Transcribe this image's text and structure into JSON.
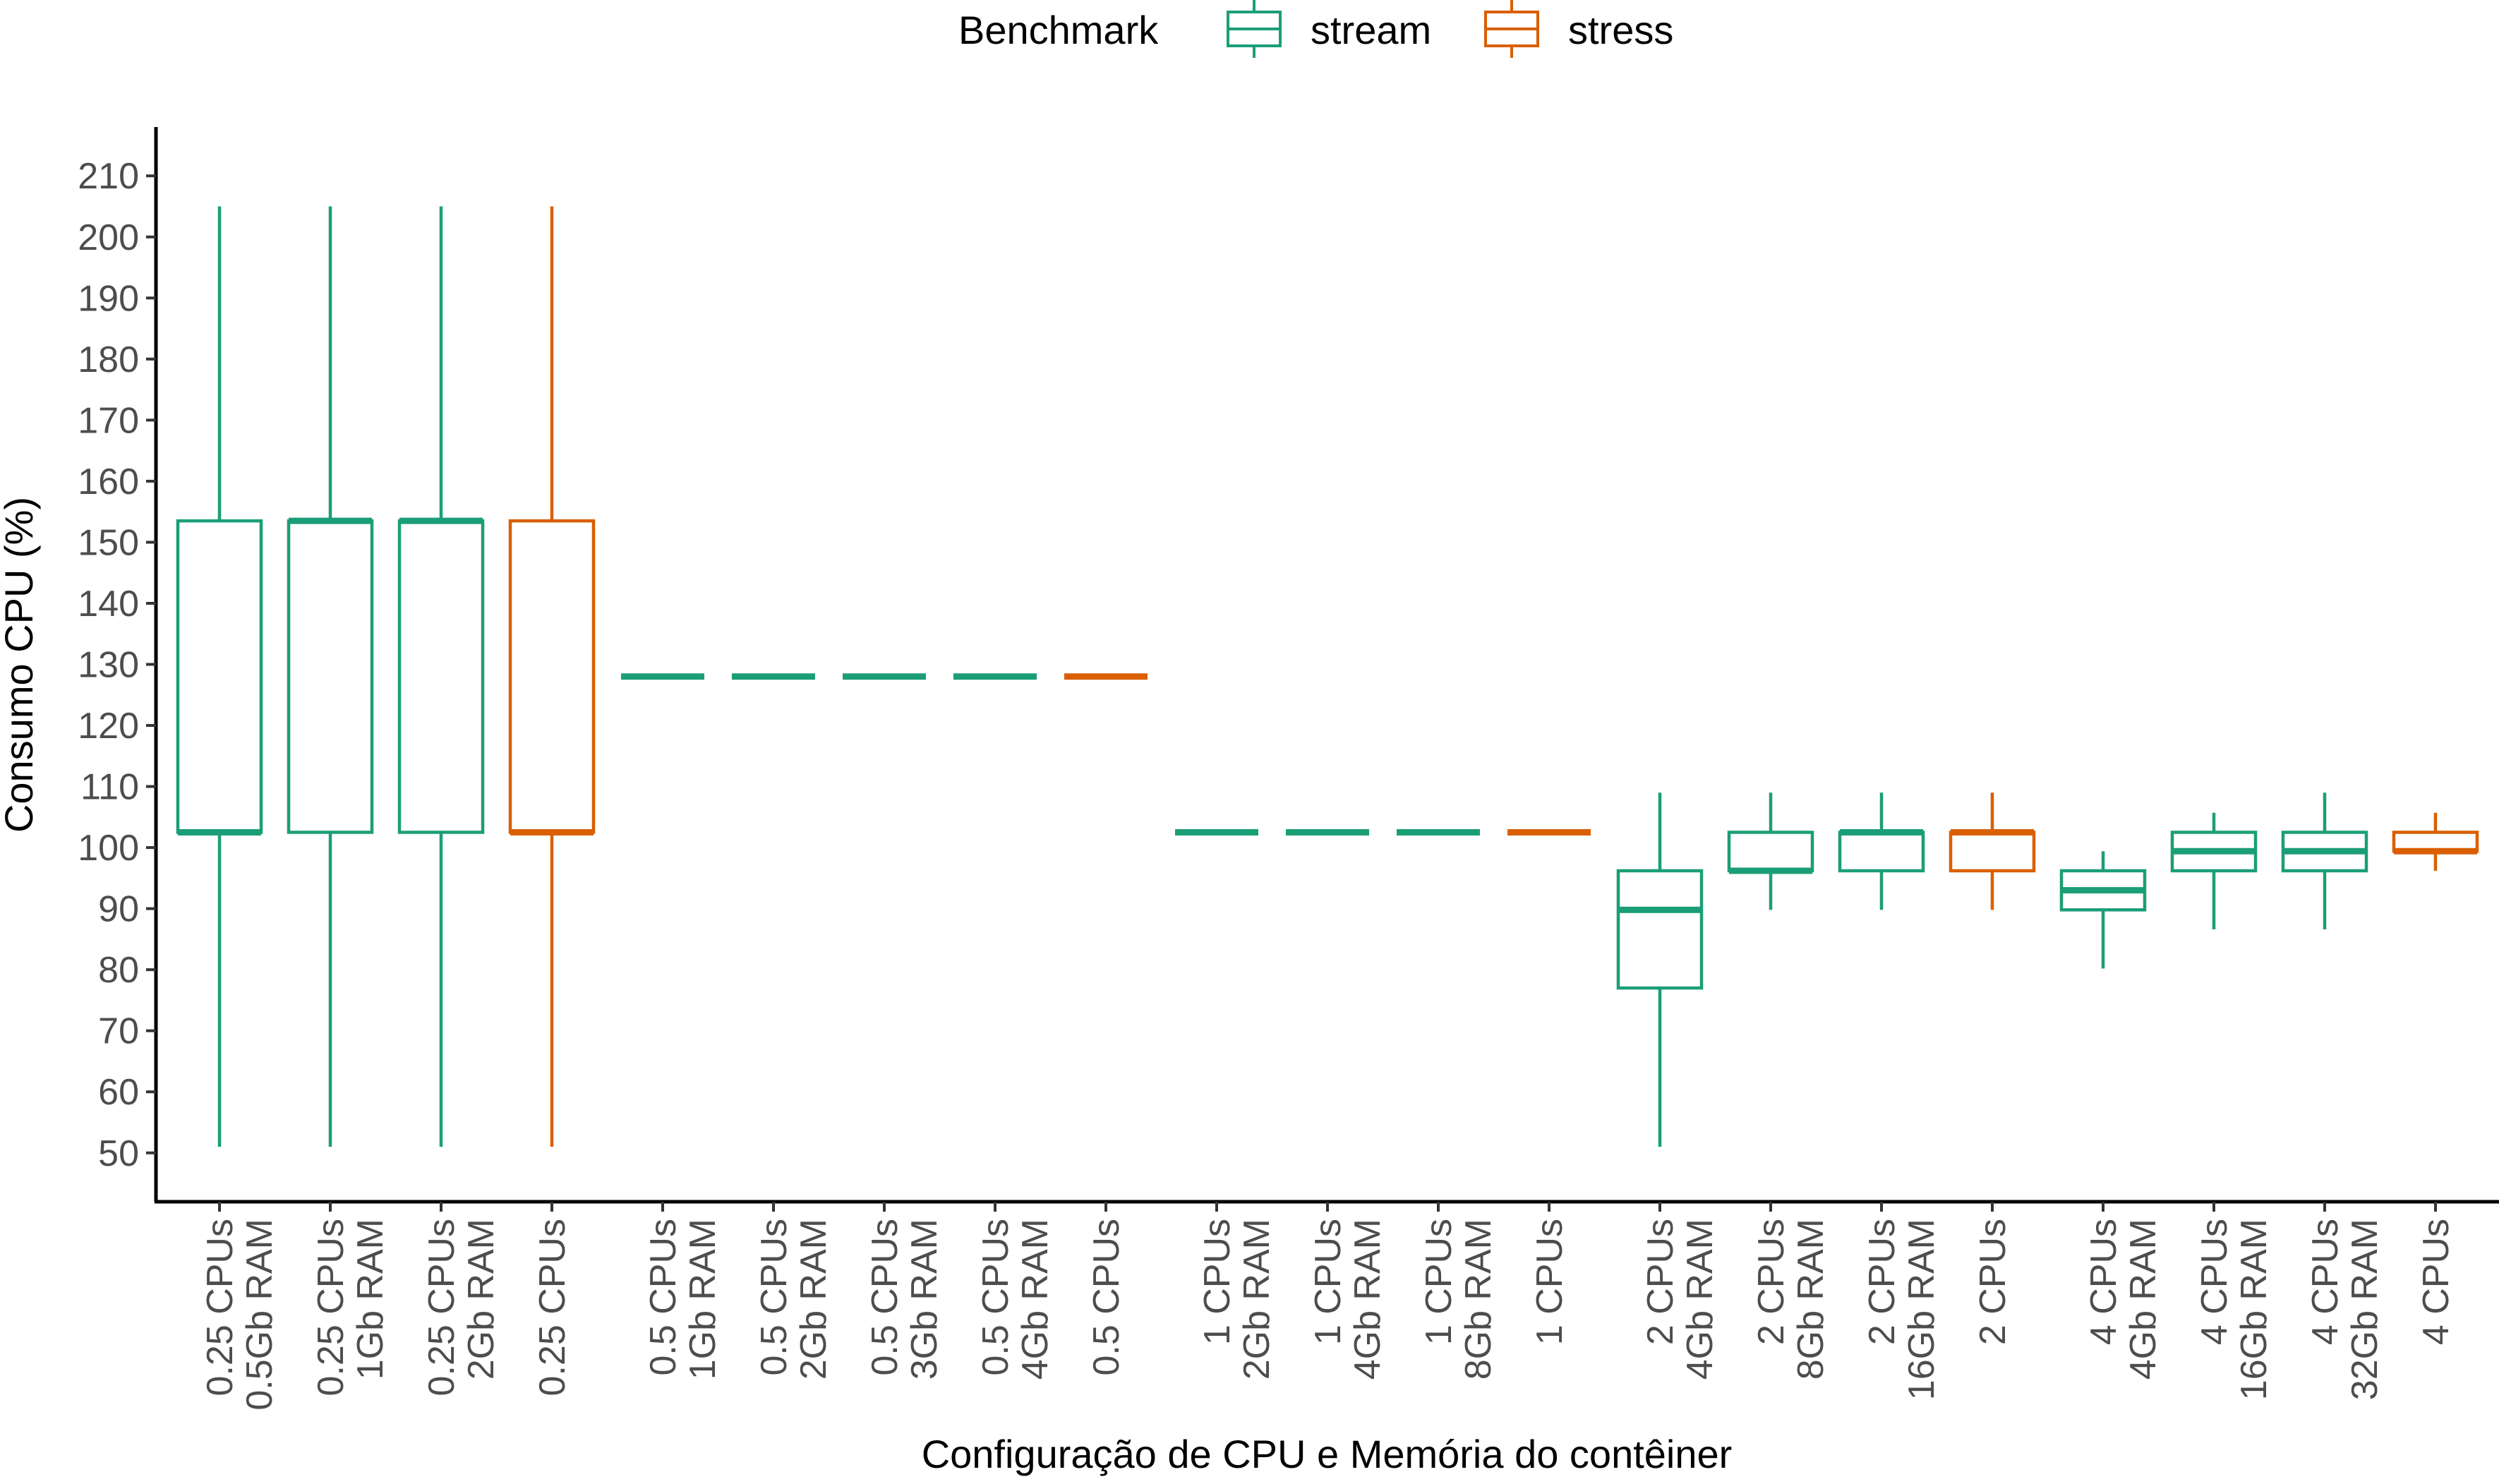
{
  "chart_data": {
    "type": "boxplot",
    "title": "",
    "xlabel": "Configuração de CPU e Memória do contêiner",
    "ylabel": "Consumo CPU (%)",
    "ylim": [
      42,
      218
    ],
    "yticks": [
      50,
      60,
      70,
      80,
      90,
      100,
      110,
      120,
      130,
      140,
      150,
      160,
      170,
      180,
      190,
      200,
      210
    ],
    "grid": false,
    "legend": {
      "title": "Benchmark",
      "position": "top",
      "entries": [
        {
          "name": "stream",
          "color": "#1b9e77"
        },
        {
          "name": "stress",
          "color": "#d95f02"
        }
      ]
    },
    "categories": [
      {
        "line1": "0.25 CPUs",
        "line2": "0.5Gb RAM",
        "series": "stream",
        "min": 51,
        "q1": 102.5,
        "median": 102.5,
        "q3": 153.5,
        "max": 205
      },
      {
        "line1": "0.25 CPUs",
        "line2": "1Gb RAM",
        "series": "stream",
        "min": 51,
        "q1": 102.5,
        "median": 153.5,
        "q3": 153.5,
        "max": 205
      },
      {
        "line1": "0.25 CPUs",
        "line2": "2Gb RAM",
        "series": "stream",
        "min": 51,
        "q1": 102.5,
        "median": 153.5,
        "q3": 153.5,
        "max": 205
      },
      {
        "line1": "0.25 CPUs",
        "line2": "",
        "series": "stress",
        "min": 51,
        "q1": 102.5,
        "median": 102.5,
        "q3": 153.5,
        "max": 205
      },
      {
        "line1": "0.5 CPUs",
        "line2": "1Gb RAM",
        "series": "stream",
        "min": 128,
        "q1": 128,
        "median": 128,
        "q3": 128,
        "max": 128
      },
      {
        "line1": "0.5 CPUs",
        "line2": "2Gb RAM",
        "series": "stream",
        "min": 128,
        "q1": 128,
        "median": 128,
        "q3": 128,
        "max": 128
      },
      {
        "line1": "0.5 CPUs",
        "line2": "3Gb RAM",
        "series": "stream",
        "min": 128,
        "q1": 128,
        "median": 128,
        "q3": 128,
        "max": 128
      },
      {
        "line1": "0.5 CPUs",
        "line2": "4Gb RAM",
        "series": "stream",
        "min": 128,
        "q1": 128,
        "median": 128,
        "q3": 128,
        "max": 128
      },
      {
        "line1": "0.5 CPUs",
        "line2": "",
        "series": "stress",
        "min": 128,
        "q1": 128,
        "median": 128,
        "q3": 128,
        "max": 128
      },
      {
        "line1": "1 CPUs",
        "line2": "2Gb RAM",
        "series": "stream",
        "min": 102.5,
        "q1": 102.5,
        "median": 102.5,
        "q3": 102.5,
        "max": 102.5
      },
      {
        "line1": "1 CPUs",
        "line2": "4Gb RAM",
        "series": "stream",
        "min": 102.5,
        "q1": 102.5,
        "median": 102.5,
        "q3": 102.5,
        "max": 102.5
      },
      {
        "line1": "1 CPUs",
        "line2": "8Gb RAM",
        "series": "stream",
        "min": 102.5,
        "q1": 102.5,
        "median": 102.5,
        "q3": 102.5,
        "max": 102.5
      },
      {
        "line1": "1 CPUs",
        "line2": "",
        "series": "stress",
        "min": 102.5,
        "q1": 102.5,
        "median": 102.5,
        "q3": 102.5,
        "max": 102.5
      },
      {
        "line1": "2 CPUs",
        "line2": "4Gb RAM",
        "series": "stream",
        "min": 51,
        "q1": 77,
        "median": 89.8,
        "q3": 96.2,
        "max": 109
      },
      {
        "line1": "2 CPUs",
        "line2": "8Gb RAM",
        "series": "stream",
        "min": 89.8,
        "q1": 96.2,
        "median": 96.2,
        "q3": 102.5,
        "max": 109
      },
      {
        "line1": "2 CPUs",
        "line2": "16Gb RAM",
        "series": "stream",
        "min": 89.8,
        "q1": 96.2,
        "median": 102.5,
        "q3": 102.5,
        "max": 109
      },
      {
        "line1": "2 CPUs",
        "line2": "",
        "series": "stress",
        "min": 89.8,
        "q1": 96.2,
        "median": 102.5,
        "q3": 102.5,
        "max": 109
      },
      {
        "line1": "4 CPUs",
        "line2": "4Gb RAM",
        "series": "stream",
        "min": 80.2,
        "q1": 89.8,
        "median": 93,
        "q3": 96.2,
        "max": 99.4
      },
      {
        "line1": "4 CPUs",
        "line2": "16Gb RAM",
        "series": "stream",
        "min": 86.6,
        "q1": 96.2,
        "median": 99.4,
        "q3": 102.5,
        "max": 105.7
      },
      {
        "line1": "4 CPUs",
        "line2": "32Gb RAM",
        "series": "stream",
        "min": 86.6,
        "q1": 96.2,
        "median": 99.4,
        "q3": 102.5,
        "max": 109
      },
      {
        "line1": "4 CPUs",
        "line2": "",
        "series": "stress",
        "min": 96.2,
        "q1": 99.4,
        "median": 99.4,
        "q3": 102.5,
        "max": 105.7
      }
    ]
  }
}
